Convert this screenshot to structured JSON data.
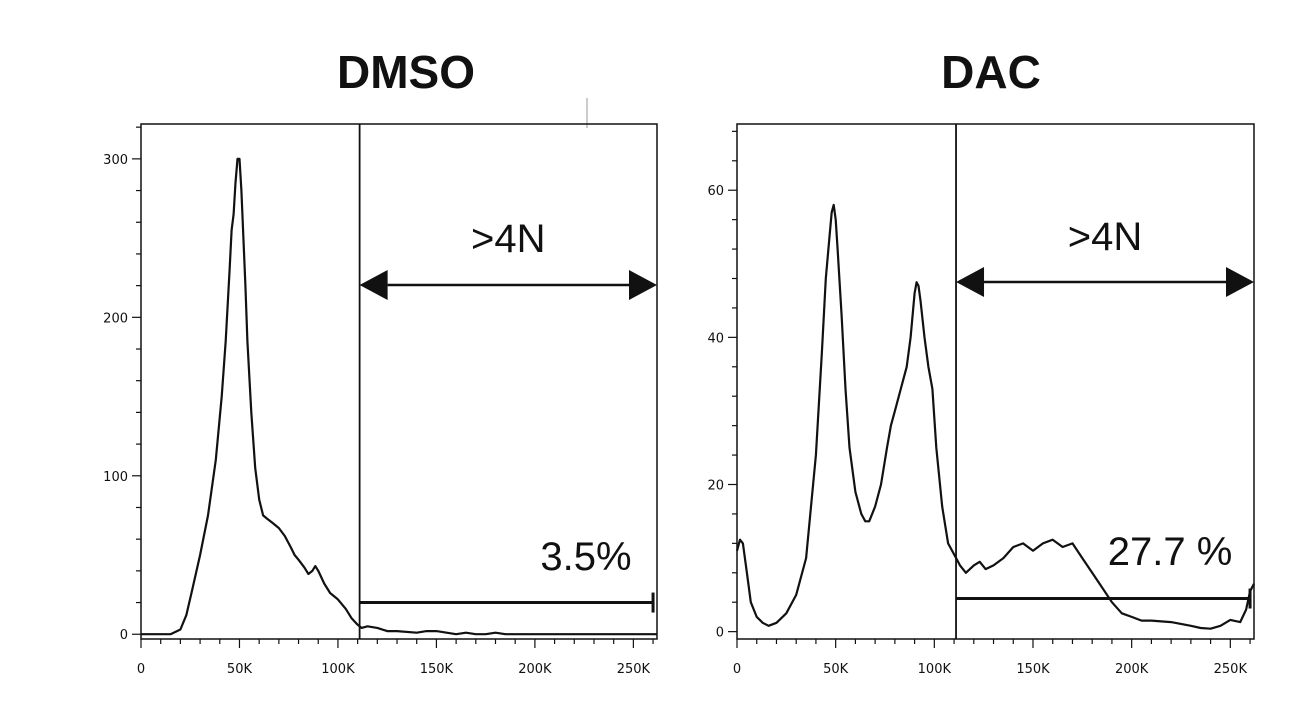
{
  "chart_data": [
    {
      "type": "line",
      "title": "DMSO",
      "xlabel": "",
      "ylabel": "",
      "xlim": [
        0,
        262000
      ],
      "ylim": [
        -3,
        322
      ],
      "xticks": [
        0,
        50000,
        100000,
        150000,
        200000,
        250000
      ],
      "xtick_labels": [
        "0",
        "50K",
        "100K",
        "150K",
        "200K",
        "250K"
      ],
      "yticks": [
        0,
        100,
        200,
        300
      ],
      "ytick_labels": [
        "0",
        "100",
        "200",
        "300"
      ],
      "y_minor_step": 20,
      "gate_x": 111000,
      "gate_label": ">4N",
      "gate_percent": "3.5%",
      "gate_bar": {
        "x_start": 111000,
        "x_end": 260000,
        "y": 20
      },
      "series": [
        {
          "name": "DMSO",
          "x": [
            0,
            10000,
            15000,
            20000,
            23000,
            26000,
            30000,
            34000,
            38000,
            41000,
            43000,
            45000,
            46000,
            47000,
            48000,
            49000,
            50000,
            51000,
            52000,
            53000,
            54000,
            56000,
            58000,
            60000,
            62000,
            64000,
            67000,
            70000,
            73000,
            76000,
            78000,
            80000,
            83000,
            85000,
            87000,
            88500,
            90000,
            93000,
            96000,
            100000,
            104000,
            107000,
            110000,
            112000,
            115000,
            120000,
            125000,
            130000,
            140000,
            145000,
            150000,
            160000,
            165000,
            170000,
            175000,
            180000,
            185000,
            200000,
            262000
          ],
          "y": [
            0,
            0,
            0,
            3,
            12,
            28,
            50,
            75,
            110,
            150,
            185,
            230,
            255,
            265,
            285,
            300,
            300,
            280,
            250,
            220,
            185,
            140,
            105,
            85,
            75,
            73,
            70,
            67,
            62,
            55,
            50,
            47,
            42,
            38,
            40,
            43,
            40,
            32,
            26,
            22,
            16,
            10,
            6,
            4,
            5,
            4,
            2,
            2,
            1,
            2,
            2,
            0,
            1,
            0,
            0,
            1,
            0,
            0,
            0
          ]
        }
      ]
    },
    {
      "type": "line",
      "title": "DAC",
      "xlabel": "",
      "ylabel": "",
      "xlim": [
        0,
        262000
      ],
      "ylim": [
        -1,
        69
      ],
      "xticks": [
        0,
        50000,
        100000,
        150000,
        200000,
        250000
      ],
      "xtick_labels": [
        "0",
        "50K",
        "100K",
        "150K",
        "200K",
        "250K"
      ],
      "yticks": [
        0,
        20,
        40,
        60
      ],
      "ytick_labels": [
        "0",
        "20",
        "40",
        "60"
      ],
      "y_minor_step": 4,
      "gate_x": 111000,
      "gate_label": ">4N",
      "gate_percent": "27.7 %",
      "gate_bar": {
        "x_start": 111000,
        "x_end": 260000,
        "y": 4.5
      },
      "series": [
        {
          "name": "DAC",
          "x": [
            0,
            1500,
            3000,
            5000,
            7000,
            10000,
            13000,
            16000,
            20000,
            25000,
            30000,
            35000,
            40000,
            43000,
            45000,
            47000,
            48000,
            49000,
            50000,
            51000,
            53000,
            55000,
            57000,
            60000,
            63000,
            65000,
            67000,
            70000,
            73000,
            76000,
            78000,
            80000,
            83000,
            86000,
            88000,
            90000,
            91000,
            92000,
            93000,
            95000,
            97000,
            99000,
            101000,
            104000,
            107000,
            110000,
            113000,
            116000,
            120000,
            123000,
            126000,
            130000,
            135000,
            140000,
            145000,
            150000,
            155000,
            160000,
            165000,
            170000,
            175000,
            180000,
            185000,
            190000,
            195000,
            200000,
            205000,
            210000,
            220000,
            230000,
            235000,
            240000,
            245000,
            250000,
            255000,
            258000,
            260000,
            262000
          ],
          "y": [
            11,
            12.5,
            12,
            8,
            4,
            2,
            1.2,
            0.8,
            1.2,
            2.5,
            5,
            10,
            24,
            38,
            48,
            54,
            57,
            58,
            56,
            52,
            43,
            33,
            25,
            19,
            16,
            15,
            15,
            17,
            20,
            25,
            28,
            30,
            33,
            36,
            40,
            46,
            47.5,
            47,
            45,
            40,
            36,
            33,
            25,
            17,
            12,
            10.5,
            9,
            8,
            9,
            9.5,
            8.5,
            9,
            10,
            11.5,
            12,
            11,
            12,
            12.5,
            11.5,
            12,
            10,
            8,
            6,
            4,
            2.5,
            2,
            1.5,
            1.5,
            1.3,
            0.8,
            0.5,
            0.4,
            0.8,
            1.6,
            1.3,
            3,
            5.5,
            6.5
          ]
        }
      ]
    }
  ]
}
